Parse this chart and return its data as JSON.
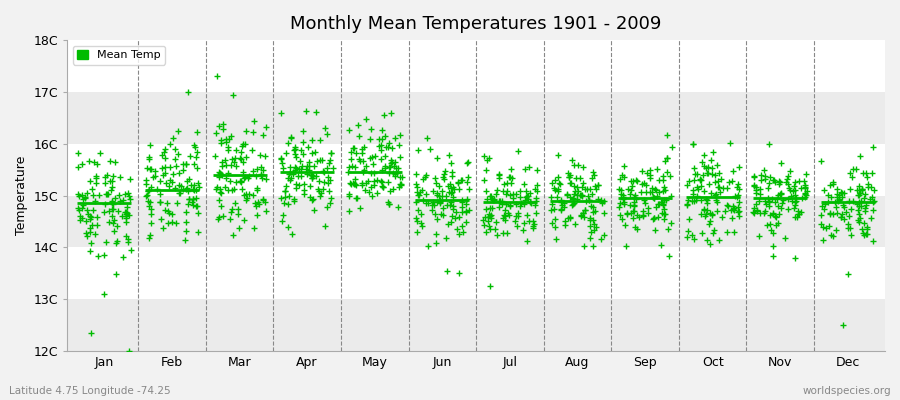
{
  "title": "Monthly Mean Temperatures 1901 - 2009",
  "ylabel": "Temperature",
  "xlabel_labels": [
    "Jan",
    "Feb",
    "Mar",
    "Apr",
    "May",
    "Jun",
    "Jul",
    "Aug",
    "Sep",
    "Oct",
    "Nov",
    "Dec"
  ],
  "ylim": [
    12,
    18
  ],
  "yticks": [
    12,
    13,
    14,
    15,
    16,
    17,
    18
  ],
  "ytick_labels": [
    "12C",
    "13C",
    "14C",
    "15C",
    "16C",
    "17C",
    "18C"
  ],
  "marker_color": "#00bb00",
  "legend_label": "Mean Temp",
  "bottom_left": "Latitude 4.75 Longitude -74.25",
  "bottom_right": "worldspecies.org",
  "bg_color": "#f2f2f2",
  "plot_bg_color": "#ffffff",
  "band_color": "#ebebeb",
  "grid_color": "#888888",
  "n_years": 109,
  "seed": 42,
  "monthly_means": [
    14.85,
    15.1,
    15.4,
    15.45,
    15.45,
    14.92,
    14.88,
    14.9,
    14.95,
    14.98,
    14.95,
    14.88
  ],
  "monthly_stds": [
    0.52,
    0.48,
    0.5,
    0.45,
    0.45,
    0.4,
    0.38,
    0.38,
    0.38,
    0.38,
    0.38,
    0.4
  ],
  "median_values": [
    14.85,
    15.1,
    15.4,
    15.45,
    15.45,
    14.92,
    14.88,
    14.9,
    14.95,
    14.98,
    14.95,
    14.88
  ]
}
